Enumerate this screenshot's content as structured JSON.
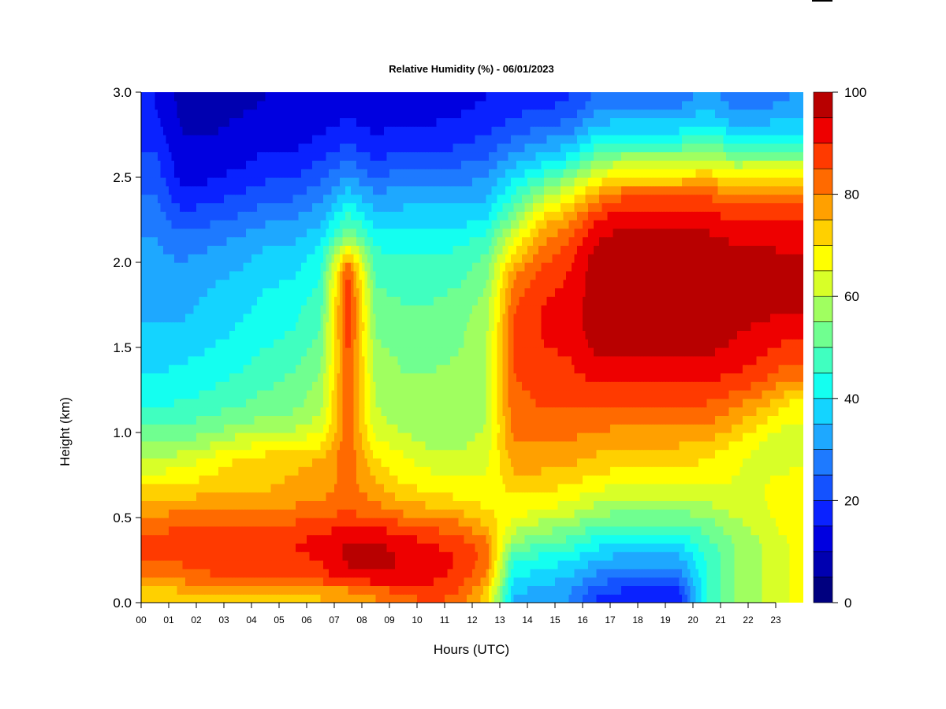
{
  "chart_data": {
    "type": "heatmap",
    "title": "Relative Humidity (%) - 06/01/2023",
    "xlabel": "Hours (UTC)",
    "ylabel": "Height (km)",
    "xlim": [
      0,
      24
    ],
    "ylim": [
      0,
      3
    ],
    "x_ticks": [
      0,
      1,
      2,
      3,
      4,
      5,
      6,
      7,
      8,
      9,
      10,
      11,
      12,
      13,
      14,
      15,
      16,
      17,
      18,
      19,
      20,
      21,
      22,
      23
    ],
    "x_tick_labels": [
      "00",
      "01",
      "02",
      "03",
      "04",
      "05",
      "06",
      "07",
      "08",
      "09",
      "10",
      "11",
      "12",
      "13",
      "14",
      "15",
      "16",
      "17",
      "18",
      "19",
      "20",
      "21",
      "22",
      "23"
    ],
    "y_ticks": [
      0.0,
      0.5,
      1.0,
      1.5,
      2.0,
      2.5,
      3.0
    ],
    "y_tick_labels": [
      "0.0",
      "0.5",
      "1.0",
      "1.5",
      "2.0",
      "2.5",
      "3.0"
    ],
    "colorbar": {
      "levels": [
        0,
        5,
        10,
        15,
        20,
        25,
        30,
        35,
        40,
        45,
        50,
        55,
        60,
        65,
        70,
        75,
        80,
        85,
        90,
        95,
        100
      ],
      "tick_values": [
        0,
        20,
        40,
        60,
        80,
        100
      ],
      "tick_labels": [
        "0",
        "20",
        "40",
        "60",
        "80",
        "100"
      ],
      "colors": [
        "#00007F",
        "#0000B0",
        "#0000E0",
        "#0A22FF",
        "#1452FF",
        "#1E7AFF",
        "#1EA8FF",
        "#14D4FF",
        "#14FFF0",
        "#40FFC0",
        "#70FF90",
        "#A0FF60",
        "#D8FF28",
        "#FFFF00",
        "#FFD000",
        "#FFA000",
        "#FF6A00",
        "#FF3A00",
        "#EE0000",
        "#B80000"
      ]
    },
    "heights_km": [
      0.05,
      0.15,
      0.25,
      0.35,
      0.45,
      0.55,
      0.65,
      0.75,
      0.85,
      0.95,
      1.05,
      1.15,
      1.25,
      1.35,
      1.45,
      1.55,
      1.65,
      1.75,
      1.85,
      1.95,
      2.05,
      2.15,
      2.25,
      2.35,
      2.45,
      2.55,
      2.65,
      2.75,
      2.85,
      2.95
    ],
    "hours_utc": [
      0.5,
      1.5,
      2.5,
      3.5,
      4.5,
      5.5,
      6.5,
      7.5,
      8.5,
      9.5,
      10.5,
      11.5,
      12.5,
      13.5,
      14.5,
      15.5,
      16.5,
      17.5,
      18.5,
      19.5,
      20.5,
      21.5,
      22.5,
      23.5
    ],
    "values": [
      [
        72,
        73,
        74,
        74,
        74,
        74,
        75,
        76,
        80,
        84,
        86,
        84,
        72,
        35,
        32,
        30,
        20,
        18,
        18,
        18,
        45,
        55,
        60,
        65
      ],
      [
        80,
        82,
        84,
        85,
        85,
        86,
        88,
        92,
        94,
        94,
        92,
        88,
        80,
        40,
        38,
        35,
        28,
        25,
        25,
        26,
        45,
        55,
        60,
        65
      ],
      [
        85,
        86,
        88,
        88,
        88,
        89,
        90,
        96,
        96,
        95,
        93,
        90,
        83,
        45,
        43,
        40,
        35,
        32,
        32,
        33,
        45,
        55,
        60,
        65
      ],
      [
        86,
        87,
        88,
        89,
        89,
        90,
        92,
        96,
        96,
        93,
        90,
        88,
        82,
        55,
        50,
        48,
        42,
        40,
        40,
        40,
        48,
        55,
        60,
        65
      ],
      [
        84,
        85,
        86,
        86,
        86,
        86,
        88,
        90,
        90,
        86,
        84,
        82,
        75,
        62,
        58,
        55,
        50,
        48,
        48,
        48,
        52,
        58,
        62,
        68
      ],
      [
        78,
        79,
        80,
        80,
        80,
        81,
        83,
        84,
        82,
        78,
        76,
        74,
        70,
        68,
        65,
        63,
        58,
        56,
        56,
        56,
        58,
        62,
        64,
        68
      ],
      [
        72,
        73,
        74,
        75,
        75,
        76,
        78,
        82,
        78,
        72,
        70,
        68,
        68,
        70,
        70,
        68,
        64,
        62,
        62,
        62,
        63,
        64,
        65,
        68
      ],
      [
        66,
        67,
        70,
        73,
        74,
        75,
        77,
        82,
        74,
        68,
        66,
        64,
        65,
        74,
        74,
        73,
        70,
        68,
        68,
        68,
        68,
        65,
        64,
        66
      ],
      [
        60,
        62,
        66,
        70,
        72,
        73,
        75,
        84,
        70,
        66,
        62,
        62,
        63,
        78,
        78,
        77,
        74,
        72,
        72,
        72,
        70,
        66,
        63,
        62
      ],
      [
        55,
        55,
        58,
        62,
        64,
        65,
        68,
        84,
        66,
        62,
        58,
        58,
        62,
        80,
        80,
        80,
        78,
        76,
        76,
        76,
        75,
        70,
        65,
        60
      ],
      [
        50,
        50,
        52,
        55,
        57,
        58,
        62,
        84,
        62,
        58,
        56,
        56,
        60,
        82,
        82,
        82,
        82,
        80,
        80,
        80,
        80,
        76,
        70,
        64
      ],
      [
        45,
        46,
        48,
        50,
        52,
        54,
        58,
        85,
        60,
        57,
        55,
        56,
        60,
        84,
        85,
        85,
        85,
        84,
        84,
        84,
        84,
        80,
        75,
        68
      ],
      [
        42,
        43,
        45,
        48,
        50,
        52,
        57,
        86,
        59,
        56,
        55,
        56,
        60,
        84,
        86,
        87,
        88,
        88,
        88,
        88,
        88,
        86,
        82,
        75
      ],
      [
        40,
        41,
        43,
        45,
        48,
        50,
        55,
        86,
        58,
        55,
        55,
        56,
        60,
        85,
        88,
        89,
        92,
        92,
        92,
        92,
        92,
        90,
        88,
        82
      ],
      [
        38,
        39,
        41,
        43,
        46,
        48,
        53,
        86,
        57,
        54,
        54,
        55,
        60,
        85,
        89,
        90,
        95,
        95,
        95,
        95,
        95,
        92,
        90,
        86
      ],
      [
        36,
        37,
        39,
        41,
        44,
        46,
        51,
        88,
        55,
        53,
        53,
        54,
        59,
        85,
        90,
        92,
        97,
        98,
        98,
        98,
        98,
        95,
        93,
        90
      ],
      [
        35,
        35,
        37,
        40,
        42,
        44,
        50,
        90,
        54,
        52,
        52,
        53,
        58,
        85,
        90,
        92,
        98,
        99,
        99,
        99,
        98,
        96,
        95,
        94
      ],
      [
        34,
        34,
        36,
        38,
        41,
        43,
        48,
        90,
        52,
        50,
        50,
        52,
        57,
        84,
        90,
        92,
        98,
        99,
        99,
        99,
        98,
        97,
        96,
        96
      ],
      [
        33,
        33,
        35,
        37,
        40,
        41,
        46,
        88,
        50,
        49,
        49,
        50,
        55,
        82,
        88,
        91,
        98,
        99,
        99,
        99,
        98,
        97,
        96,
        96
      ],
      [
        32,
        31,
        33,
        35,
        38,
        39,
        44,
        86,
        48,
        47,
        47,
        48,
        53,
        78,
        86,
        90,
        98,
        99,
        99,
        99,
        98,
        97,
        96,
        96
      ],
      [
        31,
        29,
        31,
        33,
        36,
        37,
        42,
        72,
        46,
        45,
        45,
        46,
        50,
        70,
        82,
        88,
        97,
        99,
        99,
        99,
        98,
        96,
        96,
        95
      ],
      [
        30,
        26,
        28,
        30,
        33,
        34,
        38,
        56,
        43,
        42,
        42,
        43,
        46,
        64,
        78,
        84,
        94,
        97,
        97,
        97,
        96,
        94,
        94,
        93
      ],
      [
        28,
        22,
        24,
        26,
        29,
        30,
        34,
        48,
        38,
        38,
        38,
        38,
        40,
        55,
        72,
        78,
        90,
        94,
        94,
        94,
        93,
        90,
        90,
        90
      ],
      [
        26,
        18,
        20,
        22,
        25,
        26,
        30,
        40,
        33,
        34,
        34,
        34,
        36,
        48,
        62,
        70,
        82,
        88,
        88,
        88,
        88,
        84,
        84,
        84
      ],
      [
        24,
        14,
        16,
        18,
        21,
        22,
        26,
        34,
        28,
        30,
        30,
        30,
        32,
        42,
        52,
        60,
        72,
        78,
        78,
        78,
        80,
        75,
        76,
        76
      ],
      [
        22,
        12,
        13,
        15,
        17,
        18,
        22,
        28,
        22,
        25,
        25,
        26,
        28,
        36,
        42,
        48,
        60,
        65,
        65,
        65,
        68,
        63,
        64,
        64
      ],
      [
        20,
        11,
        11,
        13,
        15,
        15,
        18,
        22,
        18,
        20,
        20,
        21,
        23,
        30,
        34,
        38,
        48,
        52,
        52,
        52,
        56,
        50,
        50,
        50
      ],
      [
        18,
        10,
        10,
        11,
        13,
        13,
        15,
        18,
        15,
        17,
        17,
        18,
        20,
        24,
        28,
        30,
        40,
        42,
        42,
        42,
        46,
        40,
        40,
        40
      ],
      [
        16,
        9,
        9,
        10,
        11,
        11,
        13,
        15,
        13,
        14,
        14,
        15,
        17,
        20,
        22,
        24,
        32,
        34,
        34,
        34,
        38,
        32,
        33,
        34
      ],
      [
        15,
        8,
        8,
        9,
        10,
        10,
        12,
        13,
        12,
        13,
        13,
        14,
        15,
        18,
        18,
        20,
        26,
        28,
        28,
        28,
        32,
        28,
        28,
        30
      ]
    ]
  }
}
